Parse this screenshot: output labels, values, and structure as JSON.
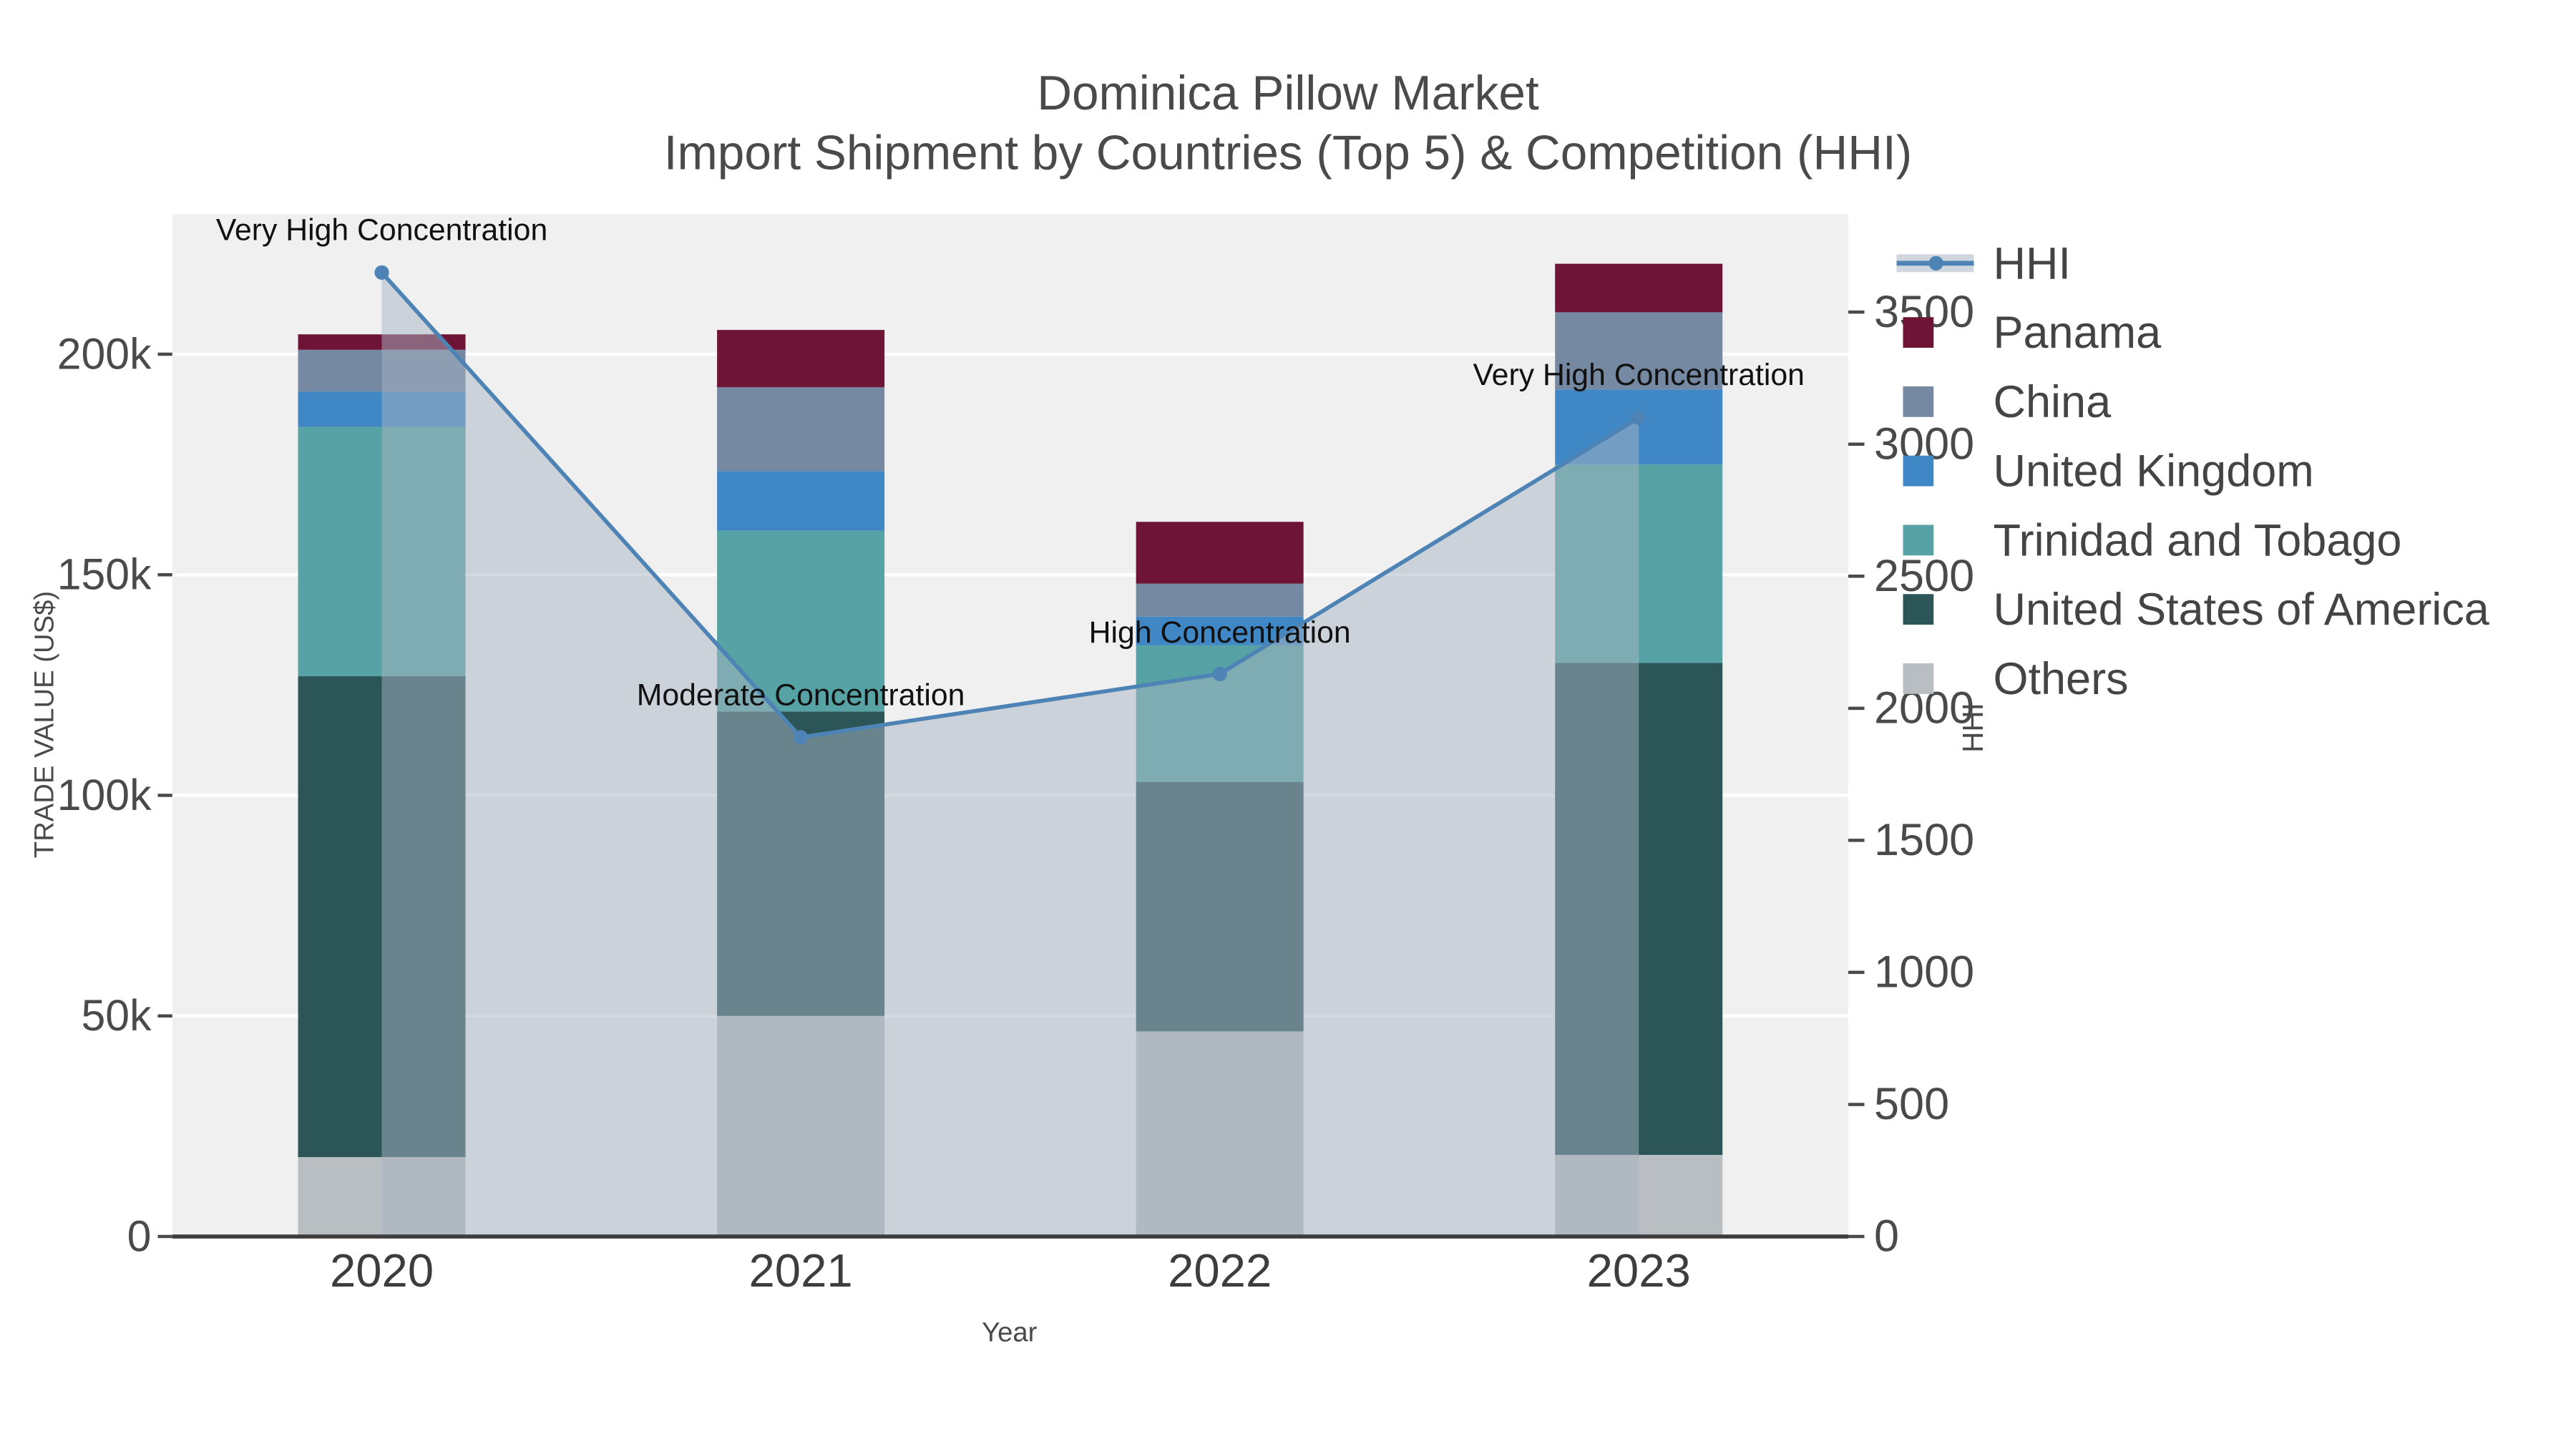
{
  "title": {
    "line1": "Dominica Pillow Market",
    "line2": "Import Shipment by Countries (Top 5) & Competition (HHI)"
  },
  "axes": {
    "x_title": "Year",
    "y_left_title": "TRADE VALUE (US$)",
    "y_right_title": "HHI",
    "x_ticks": [
      "2020",
      "2021",
      "2022",
      "2023"
    ],
    "y_left_ticks": [
      {
        "value": 0,
        "label": "0"
      },
      {
        "value": 50000,
        "label": "50k"
      },
      {
        "value": 100000,
        "label": "100k"
      },
      {
        "value": 150000,
        "label": "150k"
      },
      {
        "value": 200000,
        "label": "200k"
      }
    ],
    "y_right_ticks": [
      {
        "value": 0,
        "label": "0"
      },
      {
        "value": 500,
        "label": "500"
      },
      {
        "value": 1000,
        "label": "1000"
      },
      {
        "value": 1500,
        "label": "1500"
      },
      {
        "value": 2000,
        "label": "2000"
      },
      {
        "value": 2500,
        "label": "2500"
      },
      {
        "value": 3000,
        "label": "3000"
      },
      {
        "value": 3500,
        "label": "3500"
      }
    ]
  },
  "legend": {
    "items": [
      {
        "label": "HHI",
        "type": "line",
        "color": "#4d84b5"
      },
      {
        "label": "Panama",
        "type": "swatch",
        "color": "#6e1436"
      },
      {
        "label": "China",
        "type": "swatch",
        "color": "#7589a3"
      },
      {
        "label": "United Kingdom",
        "type": "swatch",
        "color": "#3f87c5"
      },
      {
        "label": "Trinidad and Tobago",
        "type": "swatch",
        "color": "#57a2a4"
      },
      {
        "label": "United States of America",
        "type": "swatch",
        "color": "#2b5556"
      },
      {
        "label": "Others",
        "type": "swatch",
        "color": "#b9bec3"
      }
    ]
  },
  "annotations": [
    {
      "text": "Very High Concentration",
      "category": "2020",
      "hhi": 3650
    },
    {
      "text": "Moderate Concentration",
      "category": "2021",
      "hhi": 1890
    },
    {
      "text": "High Concentration",
      "category": "2022",
      "hhi": 2130
    },
    {
      "text": "Very High Concentration",
      "category": "2023",
      "hhi": 3100
    }
  ],
  "chart_data": {
    "type": "bar",
    "subtype": "stacked-bars-with-line-overlay",
    "categories": [
      "2020",
      "2021",
      "2022",
      "2023"
    ],
    "stack_order_bottom_to_top": [
      "Others",
      "United States of America",
      "Trinidad and Tobago",
      "United Kingdom",
      "China",
      "Panama"
    ],
    "series": [
      {
        "name": "Others",
        "color": "#b9bec3",
        "values": [
          18000,
          50000,
          46500,
          18500
        ]
      },
      {
        "name": "United States of America",
        "color": "#2b5556",
        "values": [
          109000,
          69000,
          56500,
          111500
        ]
      },
      {
        "name": "Trinidad and Tobago",
        "color": "#57a2a4",
        "values": [
          56500,
          41000,
          31000,
          45000
        ]
      },
      {
        "name": "United Kingdom",
        "color": "#3f87c5",
        "values": [
          8000,
          13500,
          6500,
          17000
        ]
      },
      {
        "name": "China",
        "color": "#7589a3",
        "values": [
          9500,
          19000,
          7500,
          17500
        ]
      },
      {
        "name": "Panama",
        "color": "#6e1436",
        "values": [
          3500,
          13000,
          14000,
          11000
        ]
      }
    ],
    "line_series": {
      "name": "HHI",
      "color": "#4d84b5",
      "fill_color": "rgba(168,180,194,0.5)",
      "values": [
        3650,
        1890,
        2130,
        3100
      ]
    },
    "title": "Dominica Pillow Market — Import Shipment by Countries (Top 5) & Competition (HHI)",
    "xlabel": "Year",
    "ylabel": "TRADE VALUE (US$)",
    "y2label": "HHI",
    "ylim": [
      0,
      231750
    ],
    "y2lim": [
      0,
      3871
    ],
    "grid": true,
    "legend_position": "right"
  }
}
